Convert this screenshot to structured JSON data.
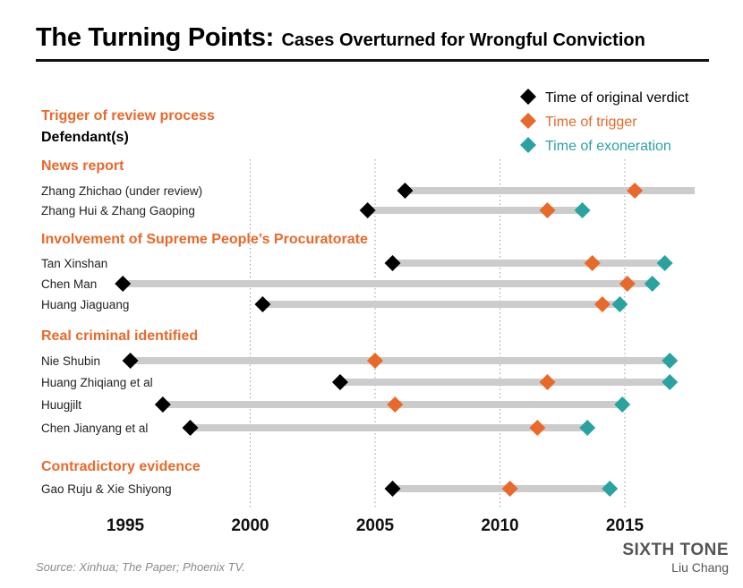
{
  "chart_data": {
    "type": "timeline",
    "title": "The Turning Points:",
    "subtitle": "Cases Overturned for Wrongful Conviction",
    "column_header": "Trigger of review process",
    "column_subheader": "Defendant(s)",
    "legend": [
      {
        "key": "verdict",
        "label": "Time of original verdict",
        "color": "#000000"
      },
      {
        "key": "trigger",
        "label": "Time of trigger",
        "color": "#e8692a"
      },
      {
        "key": "exoneration",
        "label": "Time of exoneration",
        "color": "#2aa3a0"
      }
    ],
    "x_ticks": [
      "1995",
      "2000",
      "2005",
      "2010",
      "2015"
    ],
    "xlim": [
      1994.3,
      2017.8
    ],
    "grid": "dotted vertical",
    "groups": [
      {
        "name": "News report",
        "cases": [
          {
            "label": "Zhang Zhichao (under review)",
            "verdict": 2006.2,
            "trigger": 2015.4,
            "exoneration": null,
            "bar_end": 2017.8
          },
          {
            "label": "Zhang Hui & Zhang Gaoping",
            "verdict": 2004.7,
            "trigger": 2011.9,
            "exoneration": 2013.3,
            "bar_end": null
          }
        ]
      },
      {
        "name": "Involvement of Supreme People’s Procuratorate",
        "cases": [
          {
            "label": "Tan Xinshan",
            "verdict": 2005.7,
            "trigger": 2013.7,
            "exoneration": 2016.6,
            "bar_end": null
          },
          {
            "label": "Chen Man",
            "verdict": 1994.9,
            "trigger": 2015.1,
            "exoneration": 2016.1,
            "bar_end": null
          },
          {
            "label": "Huang Jiaguang",
            "verdict": 2000.5,
            "trigger": 2014.1,
            "exoneration": 2014.8,
            "bar_end": null
          }
        ]
      },
      {
        "name": "Real criminal identified",
        "cases": [
          {
            "label": "Nie Shubin",
            "verdict": 1995.2,
            "trigger": 2005.0,
            "exoneration": 2016.8,
            "bar_end": null
          },
          {
            "label": "Huang Zhiqiang et al",
            "verdict": 2003.6,
            "trigger": 2011.9,
            "exoneration": 2016.8,
            "bar_end": null
          },
          {
            "label": "Huugjilt",
            "verdict": 1996.5,
            "trigger": 2005.8,
            "exoneration": 2014.9,
            "bar_end": null
          },
          {
            "label": "Chen Jianyang et al",
            "verdict": 1997.6,
            "trigger": 2011.5,
            "exoneration": 2013.5,
            "bar_end": null
          }
        ]
      },
      {
        "name": "Contradictory evidence",
        "cases": [
          {
            "label": "Gao Ruju & Xie Shiyong",
            "verdict": 2005.7,
            "trigger": 2010.4,
            "exoneration": 2014.4,
            "bar_end": null
          }
        ]
      }
    ]
  },
  "footer": {
    "source": "Source: Xinhua; The Paper; Phoenix TV.",
    "brand": "SIXTH TONE",
    "author": "Liu Chang"
  }
}
